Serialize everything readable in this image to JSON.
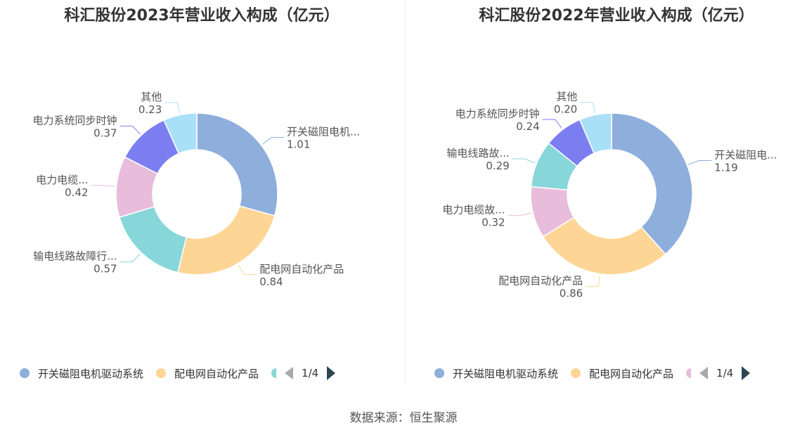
{
  "chart_data": [
    {
      "type": "pie",
      "title": "科汇股份2023年营业收入构成（亿元）",
      "slices": [
        {
          "label": "开关磁阻电机...",
          "legend": "开关磁阻电机驱动系统",
          "value": 1.01,
          "value_label": "1.01",
          "color": "#8eaedb"
        },
        {
          "label": "配电网自动化产品",
          "legend": "配电网自动化产品",
          "value": 0.84,
          "value_label": "0.84",
          "color": "#fdd696"
        },
        {
          "label": "输电线路故障行...",
          "value": 0.57,
          "value_label": "0.57",
          "color": "#86d6da"
        },
        {
          "label": "电力电缆...",
          "value": 0.42,
          "value_label": "0.42",
          "color": "#e8bcdb"
        },
        {
          "label": "电力系统同步时钟",
          "value": 0.37,
          "value_label": "0.37",
          "color": "#7b7ef1"
        },
        {
          "label": "其他",
          "value": 0.23,
          "value_label": "0.23",
          "color": "#aadff8"
        }
      ],
      "legend": {
        "items": [
          "开关磁阻电机驱动系统",
          "配电网自动化产品"
        ],
        "page": "1/4"
      }
    },
    {
      "type": "pie",
      "title": "科汇股份2022年营业收入构成（亿元）",
      "slices": [
        {
          "label": "开关磁阻电...",
          "legend": "开关磁阻电机驱动系统",
          "value": 1.19,
          "value_label": "1.19",
          "color": "#8eaedb"
        },
        {
          "label": "配电网自动化产品",
          "legend": "配电网自动化产品",
          "value": 0.86,
          "value_label": "0.86",
          "color": "#fdd696"
        },
        {
          "label": "电力电缆故...",
          "value": 0.32,
          "value_label": "0.32",
          "color": "#e8bcdb"
        },
        {
          "label": "输电线路故...",
          "value": 0.29,
          "value_label": "0.29",
          "color": "#86d6da"
        },
        {
          "label": "电力系统同步时钟",
          "value": 0.24,
          "value_label": "0.24",
          "color": "#7b7ef1"
        },
        {
          "label": "其他",
          "value": 0.2,
          "value_label": "0.20",
          "color": "#aadff8"
        }
      ],
      "legend": {
        "items": [
          "开关磁阻电机驱动系统",
          "配电网自动化产品"
        ],
        "page": "1/4"
      }
    }
  ],
  "legend_colors": {
    "left": [
      "#8eaedb",
      "#fdd696",
      "#86d6da"
    ],
    "right": [
      "#8eaedb",
      "#fdd696",
      "#e8bcdb"
    ]
  },
  "source": "数据来源：恒生聚源"
}
